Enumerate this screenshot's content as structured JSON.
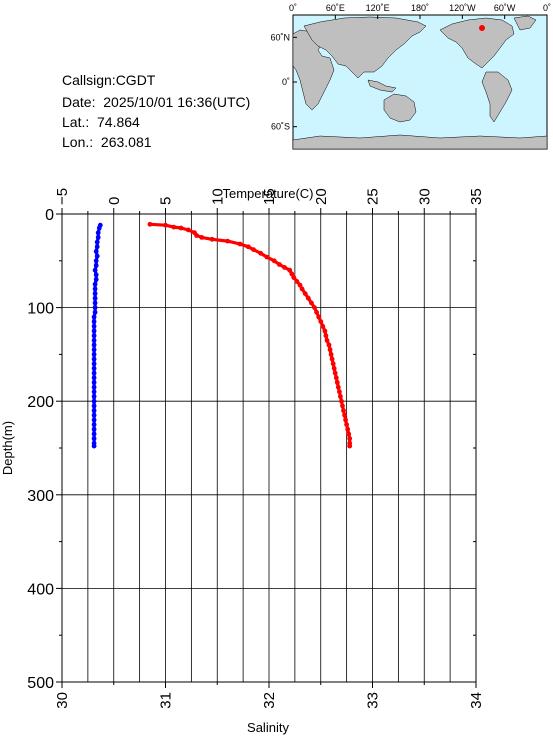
{
  "header": {
    "callsign": "Callsign:CGDT",
    "date": "Date:  2025/10/01 16:36(UTC)",
    "lat": "Lat.:  74.864",
    "lon": "Lon.:  263.081"
  },
  "map": {
    "top_labels": [
      "0˚",
      "60˚E",
      "120˚E",
      "180˚",
      "120˚W",
      "60˚W",
      "0˚"
    ],
    "lat_labels": [
      "60˚N",
      "0˚",
      "60˚S"
    ],
    "ocean_color": "#ccf5ff",
    "land_color": "#bfbfbf",
    "marker_color": "#ff0000"
  },
  "chart_data": {
    "type": "scatter",
    "temperature_axis": {
      "label": "Temperature(C)",
      "range": [
        -5,
        35
      ],
      "ticks": [
        "−5",
        "0",
        "5",
        "10",
        "15",
        "20",
        "25",
        "30",
        "35"
      ]
    },
    "salinity_axis": {
      "label": "Salinity",
      "range": [
        30,
        34
      ],
      "ticks": [
        "30",
        "31",
        "32",
        "33",
        "34"
      ]
    },
    "depth_axis": {
      "label": "Depth(m)",
      "range": [
        0,
        500
      ],
      "inverted": true,
      "ticks": [
        "0",
        "100",
        "200",
        "300",
        "400",
        "500"
      ]
    },
    "grid": true,
    "series": [
      {
        "color": "#0000ff",
        "x_axis": "temperature",
        "points": [
          [
            -1.3,
            12
          ],
          [
            -1.4,
            15
          ],
          [
            -1.5,
            20
          ],
          [
            -1.5,
            25
          ],
          [
            -1.6,
            30
          ],
          [
            -1.6,
            35
          ],
          [
            -1.7,
            40
          ],
          [
            -1.6,
            45
          ],
          [
            -1.7,
            50
          ],
          [
            -1.7,
            55
          ],
          [
            -1.8,
            60
          ],
          [
            -1.7,
            65
          ],
          [
            -1.7,
            70
          ],
          [
            -1.8,
            75
          ],
          [
            -1.8,
            80
          ],
          [
            -1.8,
            85
          ],
          [
            -1.8,
            90
          ],
          [
            -1.8,
            95
          ],
          [
            -1.8,
            100
          ],
          [
            -1.8,
            105
          ],
          [
            -1.9,
            110
          ],
          [
            -1.9,
            115
          ],
          [
            -1.9,
            120
          ],
          [
            -1.9,
            125
          ],
          [
            -1.9,
            130
          ],
          [
            -1.9,
            135
          ],
          [
            -1.9,
            140
          ],
          [
            -1.9,
            145
          ],
          [
            -1.9,
            150
          ],
          [
            -1.9,
            155
          ],
          [
            -1.9,
            160
          ],
          [
            -1.9,
            165
          ],
          [
            -1.9,
            170
          ],
          [
            -1.9,
            175
          ],
          [
            -1.9,
            180
          ],
          [
            -1.9,
            185
          ],
          [
            -1.9,
            190
          ],
          [
            -1.9,
            195
          ],
          [
            -1.9,
            200
          ],
          [
            -1.9,
            205
          ],
          [
            -1.9,
            210
          ],
          [
            -1.9,
            215
          ],
          [
            -1.9,
            220
          ],
          [
            -1.9,
            225
          ],
          [
            -1.9,
            230
          ],
          [
            -1.9,
            235
          ],
          [
            -1.9,
            240
          ],
          [
            -1.9,
            245
          ],
          [
            -1.9,
            248
          ]
        ]
      },
      {
        "color": "#ff0000",
        "x_axis": "salinity",
        "points": [
          [
            30.85,
            11
          ],
          [
            31.0,
            12
          ],
          [
            31.08,
            14
          ],
          [
            31.15,
            15
          ],
          [
            31.22,
            17
          ],
          [
            31.28,
            20
          ],
          [
            31.3,
            23
          ],
          [
            31.35,
            25
          ],
          [
            31.45,
            27
          ],
          [
            31.6,
            29
          ],
          [
            31.72,
            32
          ],
          [
            31.8,
            35
          ],
          [
            31.85,
            38
          ],
          [
            31.92,
            42
          ],
          [
            31.98,
            46
          ],
          [
            32.05,
            50
          ],
          [
            32.1,
            54
          ],
          [
            32.15,
            57
          ],
          [
            32.2,
            60
          ],
          [
            32.22,
            64
          ],
          [
            32.24,
            68
          ],
          [
            32.27,
            72
          ],
          [
            32.3,
            76
          ],
          [
            32.32,
            80
          ],
          [
            32.35,
            85
          ],
          [
            32.38,
            90
          ],
          [
            32.41,
            95
          ],
          [
            32.44,
            100
          ],
          [
            32.46,
            105
          ],
          [
            32.48,
            110
          ],
          [
            32.5,
            115
          ],
          [
            32.52,
            120
          ],
          [
            32.54,
            125
          ],
          [
            32.55,
            130
          ],
          [
            32.56,
            135
          ],
          [
            32.58,
            140
          ],
          [
            32.59,
            145
          ],
          [
            32.6,
            150
          ],
          [
            32.61,
            155
          ],
          [
            32.62,
            160
          ],
          [
            32.63,
            165
          ],
          [
            32.64,
            170
          ],
          [
            32.65,
            175
          ],
          [
            32.66,
            180
          ],
          [
            32.67,
            185
          ],
          [
            32.68,
            190
          ],
          [
            32.69,
            195
          ],
          [
            32.7,
            200
          ],
          [
            32.71,
            205
          ],
          [
            32.72,
            210
          ],
          [
            32.73,
            215
          ],
          [
            32.74,
            220
          ],
          [
            32.75,
            225
          ],
          [
            32.76,
            230
          ],
          [
            32.77,
            235
          ],
          [
            32.78,
            240
          ],
          [
            32.78,
            245
          ],
          [
            32.78,
            248
          ]
        ]
      }
    ]
  }
}
